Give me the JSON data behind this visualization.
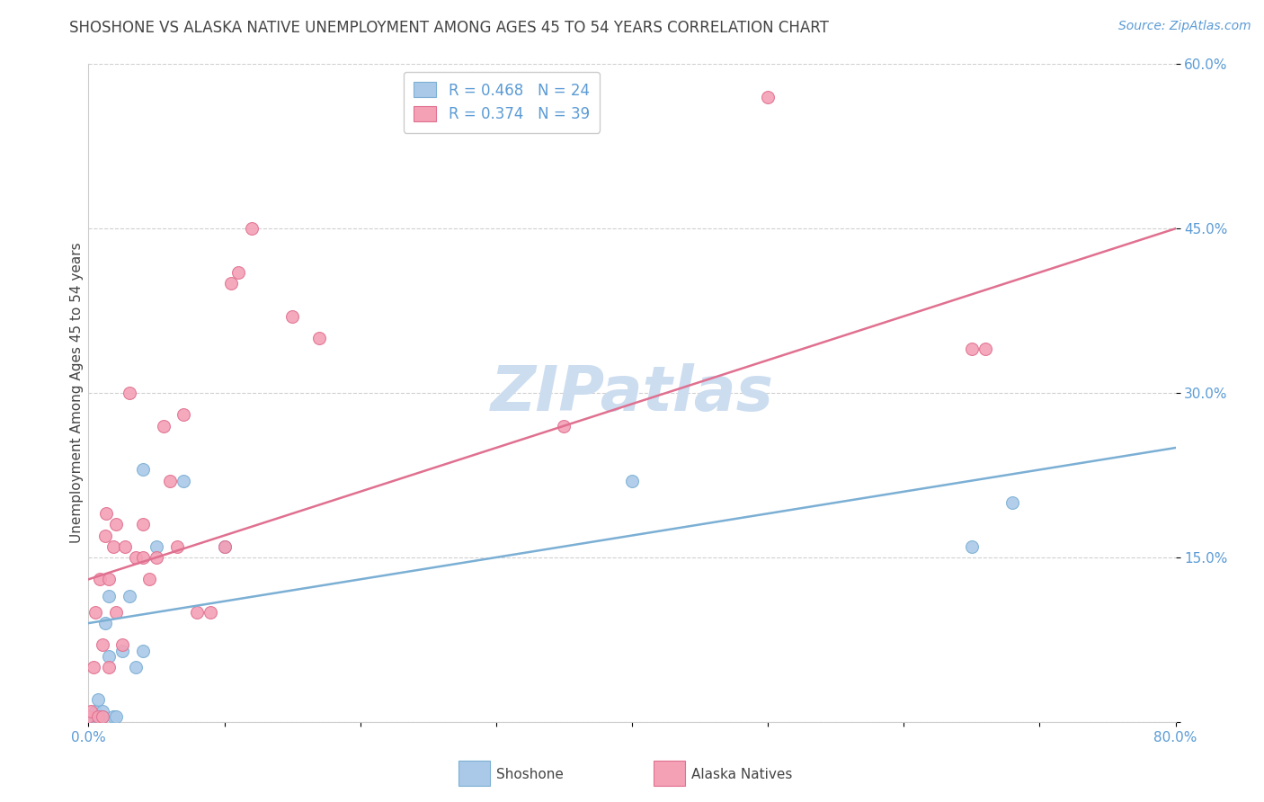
{
  "title": "SHOSHONE VS ALASKA NATIVE UNEMPLOYMENT AMONG AGES 45 TO 54 YEARS CORRELATION CHART",
  "source": "Source: ZipAtlas.com",
  "ylabel": "Unemployment Among Ages 45 to 54 years",
  "xlim": [
    0.0,
    0.8
  ],
  "ylim": [
    0.0,
    0.6
  ],
  "xticks": [
    0.0,
    0.1,
    0.2,
    0.3,
    0.4,
    0.5,
    0.6,
    0.7,
    0.8
  ],
  "xticklabels": [
    "0.0%",
    "",
    "",
    "",
    "",
    "",
    "",
    "",
    "80.0%"
  ],
  "yticks": [
    0.0,
    0.15,
    0.3,
    0.45,
    0.6
  ],
  "yticklabels": [
    "",
    "15.0%",
    "30.0%",
    "45.0%",
    "60.0%"
  ],
  "grid_color": "#d0d0d0",
  "watermark": "ZIPatlas",
  "shoshone": {
    "color": "#aac9e8",
    "edge_color": "#7bafd4",
    "R": 0.468,
    "N": 24,
    "label": "Shoshone",
    "x": [
      0.0,
      0.005,
      0.005,
      0.007,
      0.007,
      0.008,
      0.01,
      0.01,
      0.012,
      0.015,
      0.015,
      0.018,
      0.02,
      0.025,
      0.03,
      0.035,
      0.04,
      0.04,
      0.05,
      0.07,
      0.1,
      0.4,
      0.65,
      0.68
    ],
    "y": [
      0.005,
      0.005,
      0.01,
      0.005,
      0.02,
      0.005,
      0.005,
      0.01,
      0.09,
      0.06,
      0.115,
      0.005,
      0.005,
      0.065,
      0.115,
      0.05,
      0.065,
      0.23,
      0.16,
      0.22,
      0.16,
      0.22,
      0.16,
      0.2
    ],
    "trend_x": [
      0.0,
      0.8
    ],
    "trend_y": [
      0.09,
      0.25
    ]
  },
  "alaska_native": {
    "color": "#f4a0b5",
    "edge_color": "#e07090",
    "R": 0.374,
    "N": 39,
    "label": "Alaska Natives",
    "x": [
      0.0,
      0.002,
      0.004,
      0.005,
      0.007,
      0.008,
      0.01,
      0.01,
      0.012,
      0.013,
      0.015,
      0.015,
      0.018,
      0.02,
      0.02,
      0.025,
      0.027,
      0.03,
      0.035,
      0.04,
      0.04,
      0.045,
      0.05,
      0.055,
      0.06,
      0.065,
      0.07,
      0.08,
      0.09,
      0.1,
      0.105,
      0.11,
      0.12,
      0.15,
      0.17,
      0.35,
      0.5,
      0.65,
      0.66
    ],
    "y": [
      0.005,
      0.01,
      0.05,
      0.1,
      0.005,
      0.13,
      0.005,
      0.07,
      0.17,
      0.19,
      0.05,
      0.13,
      0.16,
      0.1,
      0.18,
      0.07,
      0.16,
      0.3,
      0.15,
      0.15,
      0.18,
      0.13,
      0.15,
      0.27,
      0.22,
      0.16,
      0.28,
      0.1,
      0.1,
      0.16,
      0.4,
      0.41,
      0.45,
      0.37,
      0.35,
      0.27,
      0.57,
      0.34,
      0.34
    ],
    "trend_x": [
      0.0,
      0.8
    ],
    "trend_y": [
      0.13,
      0.45
    ]
  },
  "title_color": "#444444",
  "axis_color": "#5b9bd5",
  "marker_size": 100,
  "line_width": 1.8,
  "title_fontsize": 12,
  "label_fontsize": 11,
  "tick_fontsize": 11,
  "source_fontsize": 10,
  "watermark_color": "#ccddf0",
  "watermark_fontsize": 50
}
